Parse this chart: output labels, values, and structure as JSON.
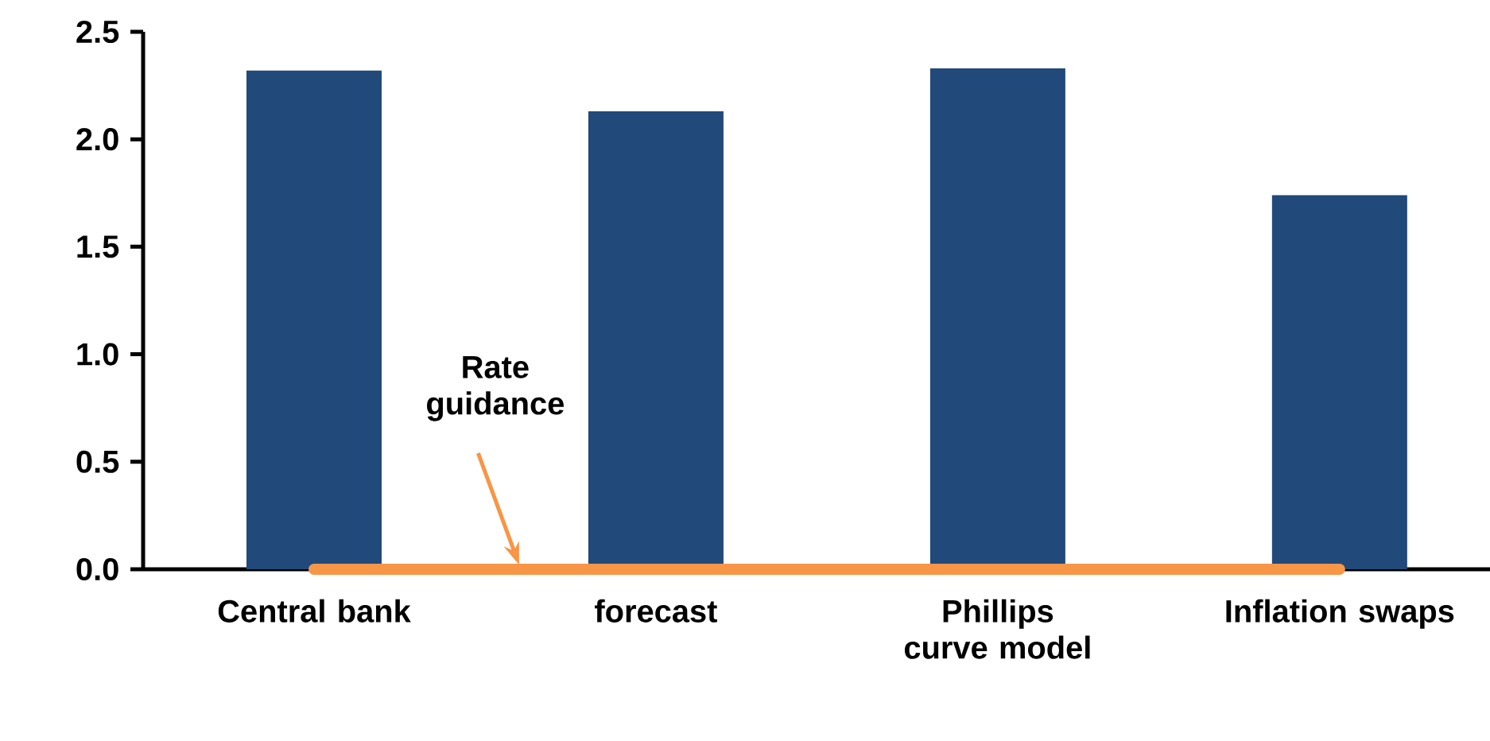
{
  "chart_data": {
    "type": "bar",
    "categories": [
      "Central bank",
      "forecast",
      "Phillips curve model",
      "Inflation swaps"
    ],
    "series": [
      {
        "type": "bar",
        "color": "#21497a",
        "values": [
          2.32,
          2.13,
          2.33,
          1.74
        ]
      },
      {
        "type": "line",
        "name": "Rate guidance",
        "color": "#f79646",
        "values": [
          0,
          0,
          0,
          0
        ]
      }
    ],
    "ylim": [
      0,
      2.5
    ],
    "yticks": [
      {
        "value": 0,
        "label": "0.0"
      },
      {
        "value": 0.5,
        "label": "0.5"
      },
      {
        "value": 1,
        "label": "1.0"
      },
      {
        "value": 1.5,
        "label": "1.5"
      },
      {
        "value": 2,
        "label": "2.0"
      },
      {
        "value": 2.5,
        "label": "2.5"
      }
    ]
  }
}
